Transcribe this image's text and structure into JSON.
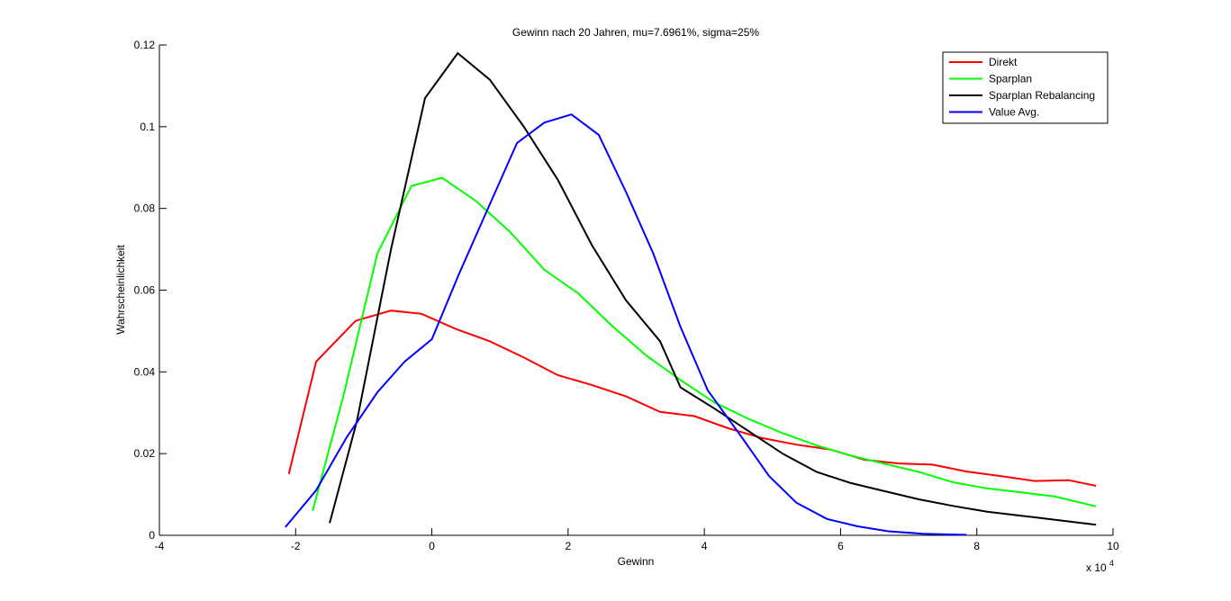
{
  "chart_data": {
    "type": "line",
    "title": "Gewinn nach 20 Jahren, mu=7.6961%, sigma=25%",
    "xlabel": "Gewinn",
    "ylabel": "Wahrscheinlichkeit",
    "x_exponent_label": "x 10",
    "x_exponent_power": "4",
    "xlim": [
      -4,
      10
    ],
    "ylim": [
      0,
      0.12
    ],
    "xticks": [
      -4,
      -2,
      0,
      2,
      4,
      6,
      8,
      10
    ],
    "xtick_labels": [
      "-4",
      "-2",
      "0",
      "2",
      "4",
      "6",
      "8",
      "10"
    ],
    "yticks": [
      0,
      0.02,
      0.04,
      0.06,
      0.08,
      0.1,
      0.12
    ],
    "ytick_labels": [
      "0",
      "0.02",
      "0.04",
      "0.06",
      "0.08",
      "0.1",
      "0.12"
    ],
    "grid": false,
    "legend_position": "top-right",
    "series": [
      {
        "name": "Direkt",
        "color": "#ff0000",
        "x": [
          -2.1,
          -1.7,
          -1.12,
          -0.6,
          -0.15,
          0.35,
          0.85,
          1.35,
          1.85,
          2.35,
          2.85,
          3.35,
          3.85,
          4.35,
          4.85,
          5.35,
          5.85,
          6.35,
          6.85,
          7.35,
          7.85,
          8.35,
          8.85,
          9.35,
          9.75
        ],
        "y": [
          0.015,
          0.0425,
          0.0525,
          0.055,
          0.0542,
          0.0505,
          0.0475,
          0.0435,
          0.0392,
          0.0368,
          0.034,
          0.0302,
          0.0292,
          0.0262,
          0.0238,
          0.0222,
          0.021,
          0.0185,
          0.0176,
          0.0173,
          0.0156,
          0.0145,
          0.0133,
          0.0135,
          0.0121
        ]
      },
      {
        "name": "Sparplan",
        "color": "#00ff00",
        "x": [
          -1.75,
          -1.3,
          -0.8,
          -0.3,
          0.15,
          0.65,
          1.15,
          1.65,
          2.15,
          2.65,
          3.15,
          3.65,
          4.15,
          4.65,
          5.15,
          5.65,
          6.15,
          6.65,
          7.15,
          7.65,
          8.15,
          8.65,
          9.15,
          9.75
        ],
        "y": [
          0.006,
          0.034,
          0.069,
          0.0855,
          0.0875,
          0.0818,
          0.0742,
          0.065,
          0.0592,
          0.0512,
          0.044,
          0.038,
          0.0325,
          0.0285,
          0.025,
          0.022,
          0.0195,
          0.0175,
          0.0155,
          0.013,
          0.0115,
          0.0105,
          0.0095,
          0.0071
        ]
      },
      {
        "name": "Sparplan Rebalancing",
        "color": "#000000",
        "x": [
          -1.5,
          -1.1,
          -0.6,
          -0.1,
          0.38,
          0.85,
          1.35,
          1.85,
          2.35,
          2.85,
          3.35,
          3.65,
          4.15,
          4.65,
          5.15,
          5.65,
          6.15,
          6.65,
          7.15,
          7.65,
          8.15,
          8.65,
          9.15,
          9.75
        ],
        "y": [
          0.003,
          0.028,
          0.07,
          0.107,
          0.118,
          0.1115,
          0.1,
          0.087,
          0.071,
          0.0575,
          0.0475,
          0.0362,
          0.031,
          0.0255,
          0.02,
          0.0155,
          0.0128,
          0.0108,
          0.0088,
          0.0072,
          0.0058,
          0.0048,
          0.0038,
          0.0026
        ]
      },
      {
        "name": "Value Avg.",
        "color": "#0000ff",
        "x": [
          -2.15,
          -1.7,
          -1.25,
          -0.8,
          -0.4,
          0,
          0.4,
          0.85,
          1.25,
          1.65,
          2.05,
          2.45,
          2.85,
          3.25,
          3.65,
          4.05,
          4.55,
          4.95,
          5.35,
          5.8,
          6.25,
          6.7,
          7.2,
          7.85
        ],
        "y": [
          0.002,
          0.011,
          0.024,
          0.035,
          0.0425,
          0.048,
          0.064,
          0.081,
          0.096,
          0.101,
          0.103,
          0.098,
          0.084,
          0.069,
          0.051,
          0.0355,
          0.024,
          0.0145,
          0.008,
          0.004,
          0.0022,
          0.001,
          0.0004,
          0.0001
        ]
      }
    ]
  }
}
